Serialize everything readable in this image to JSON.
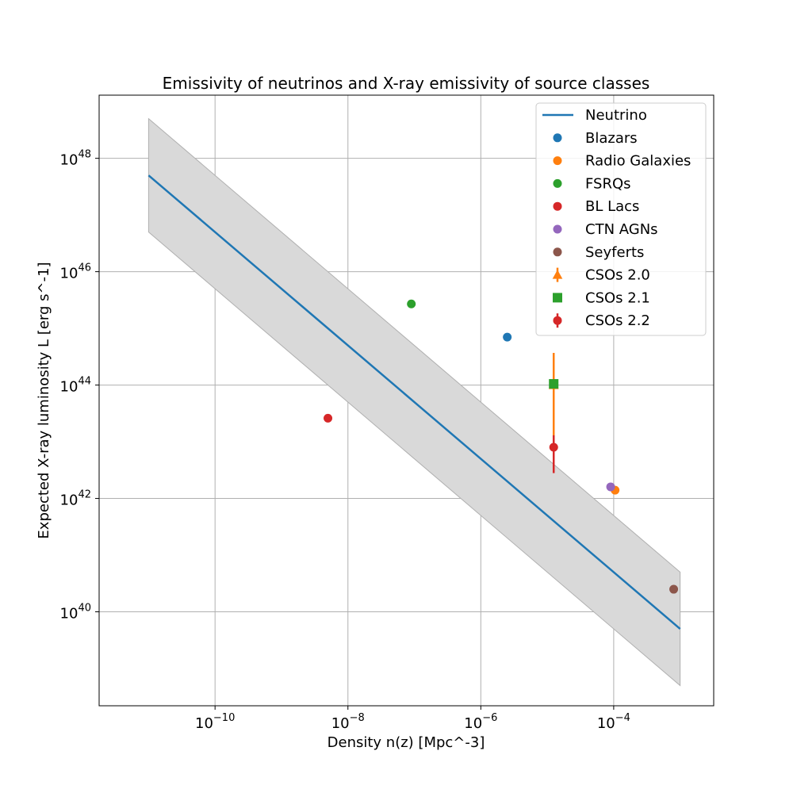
{
  "chart_data": {
    "type": "scatter",
    "title": "Emissivity of neutrinos and X-ray emissivity of source classes",
    "xlabel": "Density n(z) [Mpc^-3]",
    "ylabel": "Expected X-ray luminosity L [erg s^-1]",
    "xscale": "log",
    "yscale": "log",
    "xlim": [
      1.8e-12,
      0.0032
    ],
    "ylim": [
      2.2e+38,
      1.3e+49
    ],
    "grid": true,
    "legend_position": "top-right",
    "x_ticks": [
      {
        "value": 1e-10,
        "base": "10",
        "exp": "−10"
      },
      {
        "value": 1e-08,
        "base": "10",
        "exp": "−8"
      },
      {
        "value": 1e-06,
        "base": "10",
        "exp": "−6"
      },
      {
        "value": 0.0001,
        "base": "10",
        "exp": "−4"
      }
    ],
    "y_ticks": [
      {
        "value": 1e+40,
        "base": "10",
        "exp": "40"
      },
      {
        "value": 1e+42,
        "base": "10",
        "exp": "42"
      },
      {
        "value": 1e+44,
        "base": "10",
        "exp": "44"
      },
      {
        "value": 1e+46,
        "base": "10",
        "exp": "46"
      },
      {
        "value": 1e+48,
        "base": "10",
        "exp": "48"
      }
    ],
    "band": {
      "color": "#d9d9d9",
      "edge": "#b0b0b0",
      "x": [
        1e-11,
        0.001
      ],
      "upper": [
        5e+48,
        5e+40
      ],
      "lower": [
        5e+46,
        5e+38
      ]
    },
    "series": [
      {
        "name": "Neutrino",
        "kind": "line",
        "color": "#1f77b4",
        "x": [
          1e-11,
          0.001
        ],
        "y": [
          5e+47,
          5e+39
        ]
      },
      {
        "name": "Blazars",
        "kind": "scatter",
        "marker": "circle",
        "color": "#1f77b4",
        "points": [
          {
            "x": 2.5e-06,
            "y": 7e+44
          }
        ]
      },
      {
        "name": "Radio Galaxies",
        "kind": "scatter",
        "marker": "circle",
        "color": "#ff7f0e",
        "points": [
          {
            "x": 0.000105,
            "y": 1.4e+42
          }
        ]
      },
      {
        "name": "FSRQs",
        "kind": "scatter",
        "marker": "circle",
        "color": "#2ca02c",
        "points": [
          {
            "x": 9e-08,
            "y": 2.7e+45
          }
        ]
      },
      {
        "name": "BL Lacs",
        "kind": "scatter",
        "marker": "circle",
        "color": "#d62728",
        "points": [
          {
            "x": 5e-09,
            "y": 2.6e+43
          }
        ]
      },
      {
        "name": "CTN AGNs",
        "kind": "scatter",
        "marker": "circle",
        "color": "#9467bd",
        "points": [
          {
            "x": 9e-05,
            "y": 1.6e+42
          }
        ]
      },
      {
        "name": "Seyferts",
        "kind": "scatter",
        "marker": "circle",
        "color": "#8c564b",
        "points": [
          {
            "x": 0.0008,
            "y": 2.5e+40
          }
        ]
      },
      {
        "name": "CSOs 2.0",
        "kind": "errorbar",
        "marker": "triangle",
        "color": "#ff7f0e",
        "points": [
          {
            "x": 1.25e-05,
            "y": 1e+44,
            "ylo": 1e+43,
            "yhi": 3.7e+44
          }
        ]
      },
      {
        "name": "CSOs 2.1",
        "kind": "scatter",
        "marker": "square",
        "color": "#2ca02c",
        "points": [
          {
            "x": 1.25e-05,
            "y": 1.05e+44
          }
        ]
      },
      {
        "name": "CSOs 2.2",
        "kind": "errorbar",
        "marker": "circle",
        "color": "#d62728",
        "points": [
          {
            "x": 1.25e-05,
            "y": 8e+42,
            "ylo": 2.8e+42,
            "yhi": 1.3e+43
          }
        ]
      }
    ]
  }
}
